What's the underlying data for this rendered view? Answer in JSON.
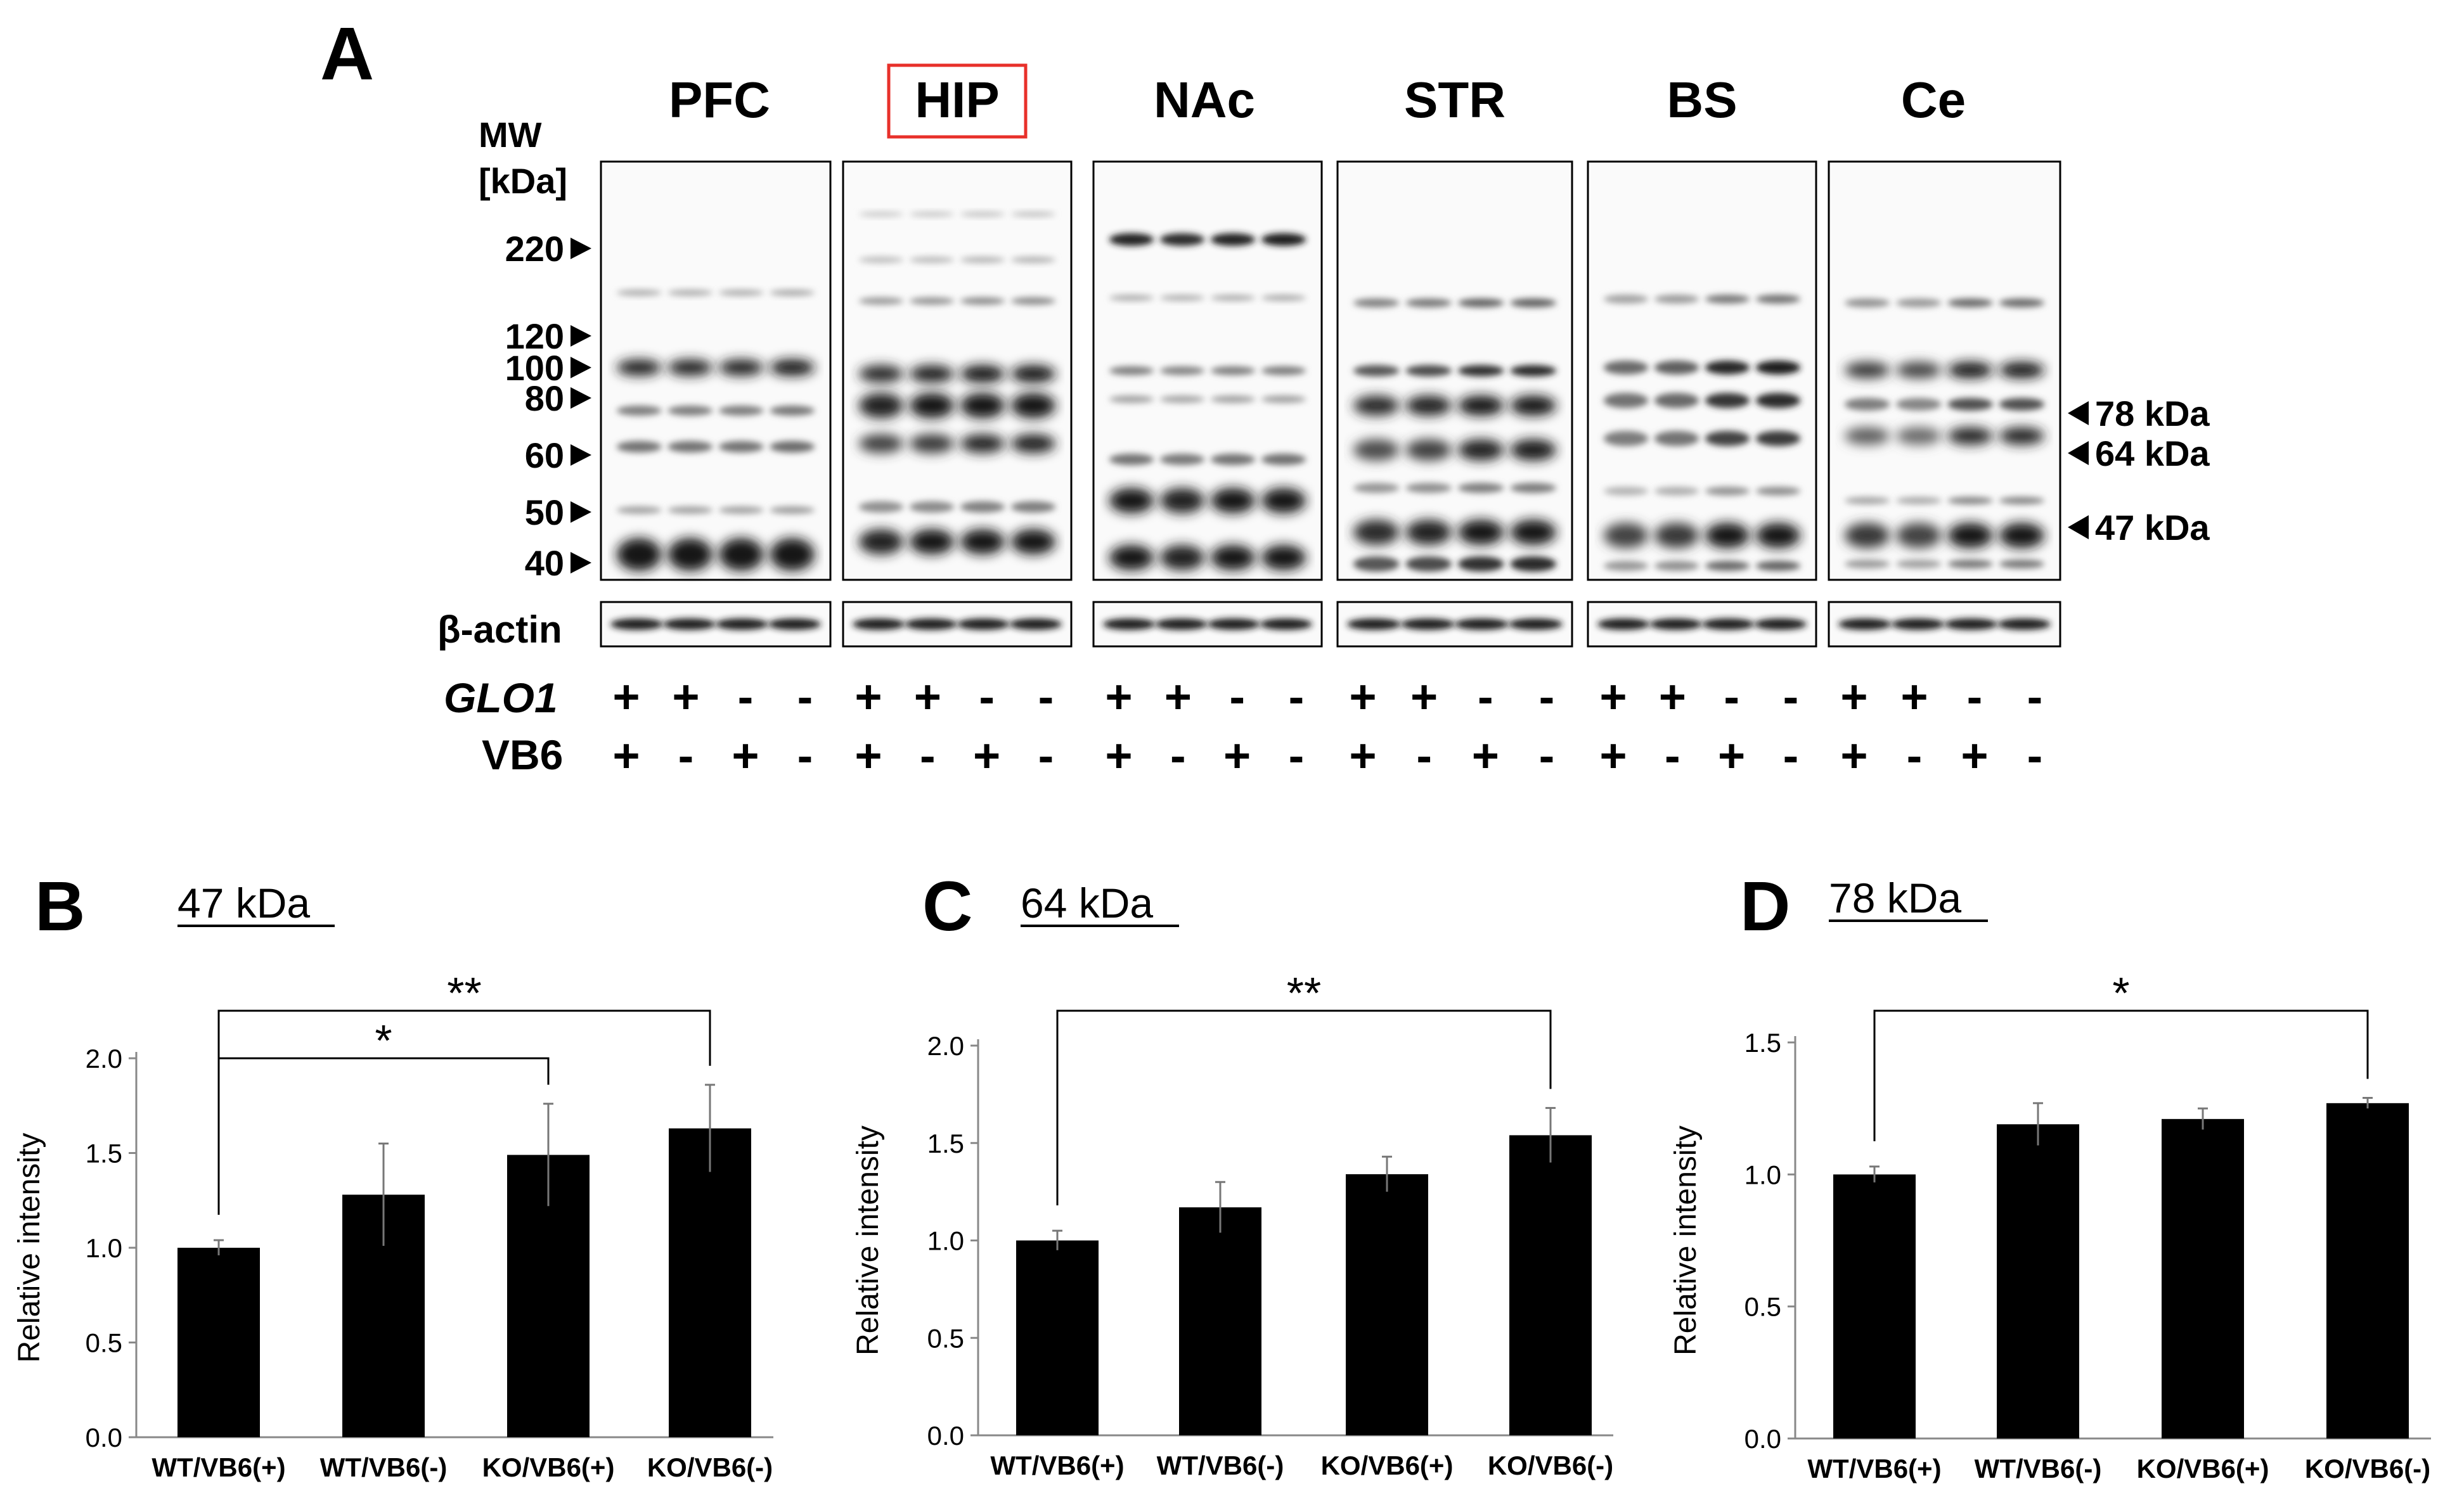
{
  "panel_a": {
    "letter": "A",
    "mw_label": "MW",
    "mw_unit": "[kDa]",
    "mw_markers": [
      "220",
      "120",
      "100",
      "80",
      "60",
      "50",
      "40"
    ],
    "regions": [
      {
        "name": "PFC",
        "highlighted": false
      },
      {
        "name": "HIP",
        "highlighted": true
      },
      {
        "name": "NAc",
        "highlighted": false
      },
      {
        "name": "STR",
        "highlighted": false
      },
      {
        "name": "BS",
        "highlighted": false
      },
      {
        "name": "Ce",
        "highlighted": false
      }
    ],
    "band_labels": [
      "78 kDa",
      "64 kDa",
      "47 kDa"
    ],
    "loading_control": "β-actin",
    "genotype_label": "GLO1",
    "treatment_label": "VB6",
    "glo1_signs": [
      "+",
      "+",
      "-",
      "-"
    ],
    "vb6_signs": [
      "+",
      "-",
      "+",
      "-"
    ],
    "highlight_color": "#e8302a"
  },
  "chart_data": [
    {
      "panel": "B",
      "type": "bar",
      "title": "47 kDa",
      "ylabel": "Relative intensity",
      "xlabel": "",
      "categories": [
        "WT/VB6(+)",
        "WT/VB6(-)",
        "KO/VB6(+)",
        "KO/VB6(-)"
      ],
      "values": [
        1.0,
        1.28,
        1.49,
        1.63
      ],
      "errors": [
        0.04,
        0.27,
        0.27,
        0.23
      ],
      "ylim": [
        0,
        2.0
      ],
      "yticks": [
        "0.0",
        "0.5",
        "1.0",
        "1.5",
        "2.0"
      ],
      "significance": [
        {
          "from": 0,
          "to": 3,
          "label": "**"
        },
        {
          "from": 0,
          "to": 2,
          "label": "*"
        }
      ],
      "bar_color": "#000000"
    },
    {
      "panel": "C",
      "type": "bar",
      "title": "64 kDa",
      "ylabel": "Relative intensity",
      "xlabel": "",
      "categories": [
        "WT/VB6(+)",
        "WT/VB6(-)",
        "KO/VB6(+)",
        "KO/VB6(-)"
      ],
      "values": [
        1.0,
        1.17,
        1.34,
        1.54
      ],
      "errors": [
        0.05,
        0.13,
        0.09,
        0.14
      ],
      "ylim": [
        0,
        2.0
      ],
      "yticks": [
        "0.0",
        "0.5",
        "1.0",
        "1.5",
        "2.0"
      ],
      "significance": [
        {
          "from": 0,
          "to": 3,
          "label": "**"
        }
      ],
      "bar_color": "#000000"
    },
    {
      "panel": "D",
      "type": "bar",
      "title": "78 kDa",
      "ylabel": "Relative intensity",
      "xlabel": "",
      "categories": [
        "WT/VB6(+)",
        "WT/VB6(-)",
        "KO/VB6(+)",
        "KO/VB6(-)"
      ],
      "values": [
        1.0,
        1.19,
        1.21,
        1.27
      ],
      "errors": [
        0.03,
        0.08,
        0.04,
        0.02
      ],
      "ylim": [
        0,
        1.5
      ],
      "yticks": [
        "0.0",
        "0.5",
        "1.0",
        "1.5"
      ],
      "significance": [
        {
          "from": 0,
          "to": 3,
          "label": "*"
        }
      ],
      "bar_color": "#000000"
    }
  ]
}
